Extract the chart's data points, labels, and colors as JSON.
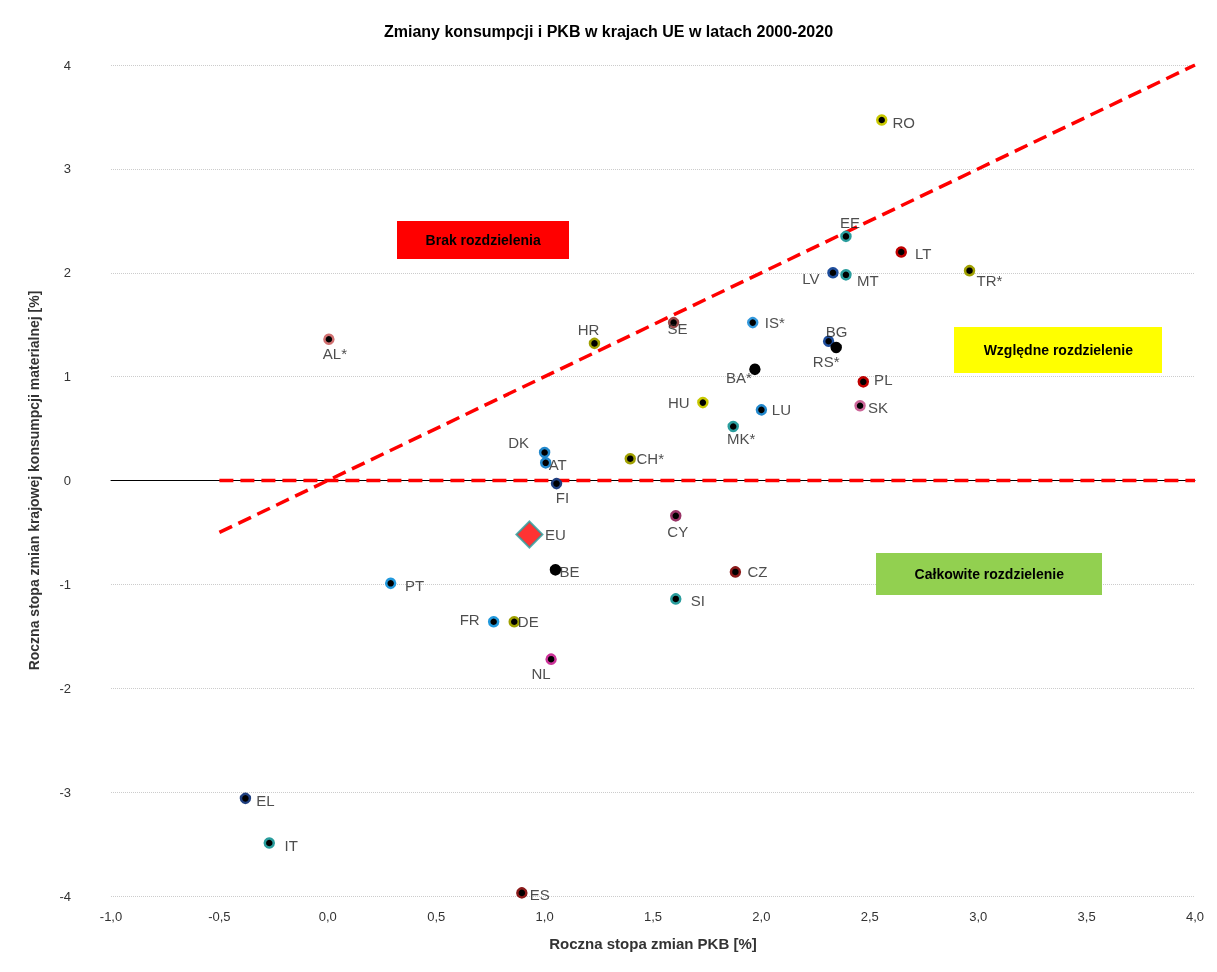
{
  "chart_data": {
    "type": "scatter",
    "title": "Zmiany konsumpcji i PKB w krajach UE w latach 2000-2020",
    "xlabel": "Roczna stopa zmian PKB [%]",
    "ylabel": "Roczna stopa zmian krajowej konsumpcji materialnej [%]",
    "xlim": [
      -1,
      4
    ],
    "ylim": [
      -4,
      4
    ],
    "xticks": [
      {
        "value": -1,
        "label": "-1,0"
      },
      {
        "value": -0.5,
        "label": "-0,5"
      },
      {
        "value": 0,
        "label": "0,0"
      },
      {
        "value": 0.5,
        "label": "0,5"
      },
      {
        "value": 1,
        "label": "1,0"
      },
      {
        "value": 1.5,
        "label": "1,5"
      },
      {
        "value": 2,
        "label": "2,0"
      },
      {
        "value": 2.5,
        "label": "2,5"
      },
      {
        "value": 3,
        "label": "3,0"
      },
      {
        "value": 3.5,
        "label": "3,5"
      },
      {
        "value": 4,
        "label": "4,0"
      }
    ],
    "yticks": [
      -4,
      -3,
      -2,
      -1,
      0,
      1,
      2,
      3,
      4
    ],
    "grid": "y",
    "series": [
      {
        "type": "scatter",
        "marker": "circle",
        "x": [
          2.555,
          2.39,
          2.645,
          2.33,
          2.39,
          2.96,
          1.96,
          2.31,
          2.345,
          1.97,
          2.47,
          2.455,
          2.0,
          1.87,
          1.73,
          1.395,
          1.0,
          1.005,
          1.055,
          1.595,
          1.23,
          0.005,
          1.05,
          1.605,
          1.88,
          1.605,
          0.29,
          0.765,
          0.86,
          1.03,
          -0.38,
          -0.27,
          0.895
        ],
        "values": [
          3.47,
          2.35,
          2.2,
          2.0,
          1.98,
          2.02,
          1.52,
          1.34,
          1.28,
          1.07,
          0.95,
          0.72,
          0.68,
          0.52,
          0.75,
          0.21,
          0.27,
          0.17,
          -0.03,
          1.52,
          1.32,
          1.36,
          -0.86,
          -0.34,
          -0.88,
          -1.14,
          -0.99,
          -1.36,
          -1.36,
          -1.72,
          -3.06,
          -3.49,
          -3.97
        ],
        "colors": [
          "#c8c800",
          "#2a9d9d",
          "#c00000",
          "#1f4e9c",
          "#2a9d9d",
          "#a0a000",
          "#3399dd",
          "#1f4e9c",
          "#000000",
          "#000000",
          "#c00000",
          "#cc6699",
          "#2288cc",
          "#2a9d9d",
          "#c8c800",
          "#a0a000",
          "#2288cc",
          "#2288cc",
          "#1f3f7f",
          "#9b4a4a",
          "#a0a000",
          "#d07070",
          "#000000",
          "#993366",
          "#8b1a1a",
          "#2a9d9d",
          "#2299dd",
          "#2299dd",
          "#a0a000",
          "#cc3399",
          "#1f3f7f",
          "#2a9d9d",
          "#8b1a1a"
        ]
      },
      {
        "type": "scatter",
        "marker": "diamond",
        "color": "#ff0000",
        "x": [
          0.93
        ],
        "values": [
          -0.52
        ]
      },
      {
        "type": "line",
        "marker": "none",
        "line_style": "dashed",
        "color": "#ff0000",
        "x": [
          -0.5,
          4
        ],
        "values": [
          -0.5,
          4
        ]
      },
      {
        "type": "line",
        "marker": "none",
        "line_style": "dashed",
        "color": "#ff0000",
        "x": [
          -0.5,
          4
        ],
        "values": [
          0,
          0
        ]
      }
    ],
    "annotations": [
      {
        "text": "RO",
        "x": 2.555,
        "y": 3.47
      },
      {
        "text": "EE",
        "x": 2.39,
        "y": 2.35
      },
      {
        "text": "LT",
        "x": 2.645,
        "y": 2.2
      },
      {
        "text": "LV",
        "x": 2.33,
        "y": 2.0
      },
      {
        "text": "MT",
        "x": 2.39,
        "y": 1.98
      },
      {
        "text": "TR*",
        "x": 2.96,
        "y": 2.02
      },
      {
        "text": "IS*",
        "x": 1.96,
        "y": 1.52
      },
      {
        "text": "BG",
        "x": 2.31,
        "y": 1.34
      },
      {
        "text": "RS*",
        "x": 2.345,
        "y": 1.28
      },
      {
        "text": "BA*",
        "x": 1.97,
        "y": 1.07
      },
      {
        "text": "PL",
        "x": 2.47,
        "y": 0.95
      },
      {
        "text": "SK",
        "x": 2.455,
        "y": 0.72
      },
      {
        "text": "LU",
        "x": 2.0,
        "y": 0.68
      },
      {
        "text": "MK*",
        "x": 1.87,
        "y": 0.52
      },
      {
        "text": "HU",
        "x": 1.73,
        "y": 0.75
      },
      {
        "text": "CH*",
        "x": 1.395,
        "y": 0.21
      },
      {
        "text": "DK",
        "x": 1.0,
        "y": 0.27
      },
      {
        "text": "AT",
        "x": 1.005,
        "y": 0.17
      },
      {
        "text": "FI",
        "x": 1.055,
        "y": -0.03
      },
      {
        "text": "SE",
        "x": 1.595,
        "y": 1.52
      },
      {
        "text": "HR",
        "x": 1.23,
        "y": 1.32
      },
      {
        "text": "AL*",
        "x": 0.005,
        "y": 1.36
      },
      {
        "text": "BE",
        "x": 1.05,
        "y": -0.86
      },
      {
        "text": "CY",
        "x": 1.605,
        "y": -0.34
      },
      {
        "text": "CZ",
        "x": 1.88,
        "y": -0.88
      },
      {
        "text": "SI",
        "x": 1.605,
        "y": -1.14
      },
      {
        "text": "PT",
        "x": 0.29,
        "y": -0.99
      },
      {
        "text": "FR",
        "x": 0.765,
        "y": -1.36
      },
      {
        "text": "DE",
        "x": 0.86,
        "y": -1.36
      },
      {
        "text": "NL",
        "x": 1.03,
        "y": -1.72
      },
      {
        "text": "EL",
        "x": -0.38,
        "y": -3.06
      },
      {
        "text": "IT",
        "x": -0.27,
        "y": -3.49
      },
      {
        "text": "ES",
        "x": 0.895,
        "y": -3.97
      },
      {
        "text": "EU",
        "x": 0.93,
        "y": -0.52
      },
      "Brak rozdzielenia",
      "Względne rozdzielenie",
      "Całkowite rozdzielenie"
    ]
  }
}
